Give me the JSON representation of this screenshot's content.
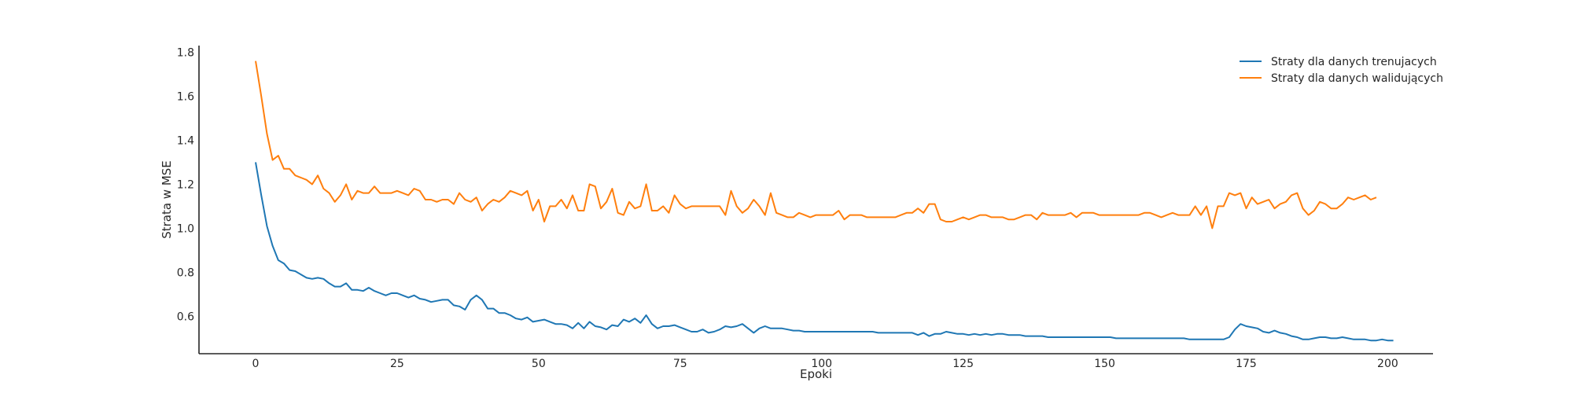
{
  "chart_data": {
    "type": "line",
    "xlabel": "Epoki",
    "ylabel": "Strata w MSE",
    "xlim": [
      -10,
      208
    ],
    "ylim": [
      0.43,
      1.83
    ],
    "xticks": [
      0,
      25,
      50,
      75,
      100,
      125,
      150,
      175,
      200
    ],
    "yticks": [
      0.6,
      0.8,
      1.0,
      1.2,
      1.4,
      1.6,
      1.8
    ],
    "ytick_labels": [
      "0.6",
      "0.8",
      "1.0",
      "1.2",
      "1.4",
      "1.6",
      "1.8"
    ],
    "legend_position": "top-right",
    "grid": false,
    "series": [
      {
        "name": "Straty dla danych trenujacych",
        "color": "#1f77b4",
        "values": [
          1.3,
          1.15,
          1.01,
          0.92,
          0.855,
          0.84,
          0.81,
          0.805,
          0.79,
          0.775,
          0.77,
          0.775,
          0.77,
          0.75,
          0.735,
          0.735,
          0.75,
          0.72,
          0.72,
          0.715,
          0.73,
          0.715,
          0.705,
          0.695,
          0.705,
          0.705,
          0.695,
          0.685,
          0.695,
          0.68,
          0.675,
          0.665,
          0.67,
          0.675,
          0.675,
          0.65,
          0.645,
          0.63,
          0.675,
          0.695,
          0.675,
          0.635,
          0.635,
          0.615,
          0.615,
          0.605,
          0.59,
          0.585,
          0.595,
          0.575,
          0.58,
          0.585,
          0.575,
          0.565,
          0.565,
          0.56,
          0.545,
          0.57,
          0.545,
          0.575,
          0.555,
          0.55,
          0.54,
          0.56,
          0.555,
          0.585,
          0.575,
          0.59,
          0.57,
          0.605,
          0.565,
          0.545,
          0.555,
          0.555,
          0.56,
          0.55,
          0.54,
          0.53,
          0.53,
          0.54,
          0.525,
          0.53,
          0.54,
          0.555,
          0.55,
          0.555,
          0.565,
          0.545,
          0.525,
          0.545,
          0.555,
          0.545,
          0.545,
          0.545,
          0.54,
          0.535,
          0.535,
          0.53,
          0.53,
          0.53,
          0.53,
          0.53,
          0.53,
          0.53,
          0.53,
          0.53,
          0.53,
          0.53,
          0.53,
          0.53,
          0.525,
          0.525,
          0.525,
          0.525,
          0.525,
          0.525,
          0.525,
          0.515,
          0.525,
          0.51,
          0.52,
          0.52,
          0.53,
          0.525,
          0.52,
          0.52,
          0.515,
          0.52,
          0.515,
          0.52,
          0.515,
          0.52,
          0.52,
          0.515,
          0.515,
          0.515,
          0.51,
          0.51,
          0.51,
          0.51,
          0.505,
          0.505,
          0.505,
          0.505,
          0.505,
          0.505,
          0.505,
          0.505,
          0.505,
          0.505,
          0.505,
          0.505,
          0.5,
          0.5,
          0.5,
          0.5,
          0.5,
          0.5,
          0.5,
          0.5,
          0.5,
          0.5,
          0.5,
          0.5,
          0.5,
          0.495,
          0.495,
          0.495,
          0.495,
          0.495,
          0.495,
          0.495,
          0.505,
          0.54,
          0.565,
          0.555,
          0.55,
          0.545,
          0.53,
          0.525,
          0.535,
          0.525,
          0.52,
          0.51,
          0.505,
          0.495,
          0.495,
          0.5,
          0.505,
          0.505,
          0.5,
          0.5,
          0.505,
          0.5,
          0.495,
          0.495,
          0.495,
          0.49,
          0.49,
          0.495,
          0.49,
          0.49
        ]
      },
      {
        "name": "Straty dla danych walidujących",
        "color": "#ff7f0e",
        "values": [
          1.76,
          1.6,
          1.43,
          1.31,
          1.33,
          1.27,
          1.27,
          1.24,
          1.23,
          1.22,
          1.2,
          1.24,
          1.18,
          1.16,
          1.12,
          1.15,
          1.2,
          1.13,
          1.17,
          1.16,
          1.16,
          1.19,
          1.16,
          1.16,
          1.16,
          1.17,
          1.16,
          1.15,
          1.18,
          1.17,
          1.13,
          1.13,
          1.12,
          1.13,
          1.13,
          1.11,
          1.16,
          1.13,
          1.12,
          1.14,
          1.08,
          1.11,
          1.13,
          1.12,
          1.14,
          1.17,
          1.16,
          1.15,
          1.17,
          1.08,
          1.13,
          1.03,
          1.1,
          1.1,
          1.13,
          1.09,
          1.15,
          1.08,
          1.08,
          1.2,
          1.19,
          1.09,
          1.12,
          1.18,
          1.07,
          1.06,
          1.12,
          1.09,
          1.1,
          1.2,
          1.08,
          1.08,
          1.1,
          1.07,
          1.15,
          1.11,
          1.09,
          1.1,
          1.1,
          1.1,
          1.1,
          1.1,
          1.1,
          1.06,
          1.17,
          1.1,
          1.07,
          1.09,
          1.13,
          1.1,
          1.06,
          1.16,
          1.07,
          1.06,
          1.05,
          1.05,
          1.07,
          1.06,
          1.05,
          1.06,
          1.06,
          1.06,
          1.06,
          1.08,
          1.04,
          1.06,
          1.06,
          1.06,
          1.05,
          1.05,
          1.05,
          1.05,
          1.05,
          1.05,
          1.06,
          1.07,
          1.07,
          1.09,
          1.07,
          1.11,
          1.11,
          1.04,
          1.03,
          1.03,
          1.04,
          1.05,
          1.04,
          1.05,
          1.06,
          1.06,
          1.05,
          1.05,
          1.05,
          1.04,
          1.04,
          1.05,
          1.06,
          1.06,
          1.04,
          1.07,
          1.06,
          1.06,
          1.06,
          1.06,
          1.07,
          1.05,
          1.07,
          1.07,
          1.07,
          1.06,
          1.06,
          1.06,
          1.06,
          1.06,
          1.06,
          1.06,
          1.06,
          1.07,
          1.07,
          1.06,
          1.05,
          1.06,
          1.07,
          1.06,
          1.06,
          1.06,
          1.1,
          1.06,
          1.1,
          1.0,
          1.1,
          1.1,
          1.16,
          1.15,
          1.16,
          1.09,
          1.14,
          1.11,
          1.12,
          1.13,
          1.09,
          1.11,
          1.12,
          1.15,
          1.16,
          1.09,
          1.06,
          1.08,
          1.12,
          1.11,
          1.09,
          1.09,
          1.11,
          1.14,
          1.13,
          1.14,
          1.15,
          1.13,
          1.14
        ]
      }
    ]
  }
}
